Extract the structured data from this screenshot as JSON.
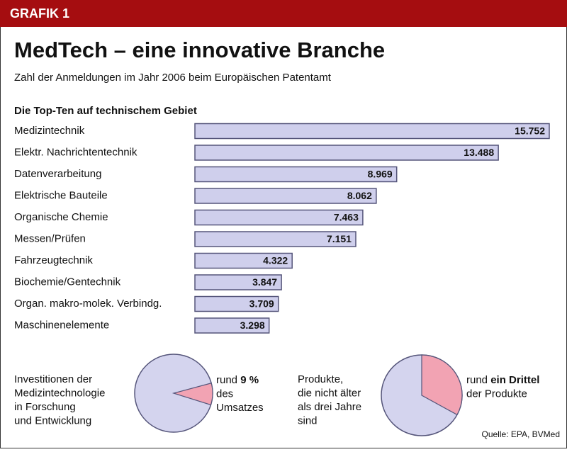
{
  "header": {
    "badge": "GRAFIK 1"
  },
  "chart_data": [
    {
      "type": "bar",
      "title": "MedTech – eine innovative Branche",
      "subtitle": "Zahl der Anmeldungen im Jahr 2006 beim Europäischen Patentamt",
      "heading": "Die Top-Ten auf technischem Gebiet",
      "categories": [
        "Medizintechnik",
        "Elektr. Nachrichtentechnik",
        "Datenverarbeitung",
        "Elektrische Bauteile",
        "Organische Chemie",
        "Messen/Prüfen",
        "Fahrzeugtechnik",
        "Biochemie/Gentechnik",
        "Organ. makro-molek. Verbindg.",
        "Maschinenelemente"
      ],
      "values": [
        15752,
        13488,
        8969,
        8062,
        7463,
        7151,
        4322,
        3847,
        3709,
        3298
      ],
      "value_labels": [
        "15.752",
        "13.488",
        "8.969",
        "8.062",
        "7.463",
        "7.151",
        "4.322",
        "3.847",
        "3.709",
        "3.298"
      ],
      "color": "#cfcfec"
    },
    {
      "type": "pie",
      "label": [
        "Investitionen der",
        "Medizintechnologie",
        "in Forschung",
        "und Entwicklung"
      ],
      "annotation": [
        [
          "rund ",
          "9 %"
        ],
        [
          "des"
        ],
        [
          "Umsatzes"
        ]
      ],
      "values": [
        9
      ],
      "color": "#f2a3b3",
      "base_color": "#d4d4ee"
    },
    {
      "type": "pie",
      "label": [
        "Produkte,",
        "die nicht älter",
        "als drei Jahre",
        "sind"
      ],
      "annotation": [
        [
          "rund ",
          "ein Drittel"
        ],
        [
          "der Produkte"
        ]
      ],
      "values": [
        33
      ],
      "color": "#f2a3b3",
      "base_color": "#d4d4ee"
    }
  ],
  "source": "Quelle: EPA, BVMed"
}
